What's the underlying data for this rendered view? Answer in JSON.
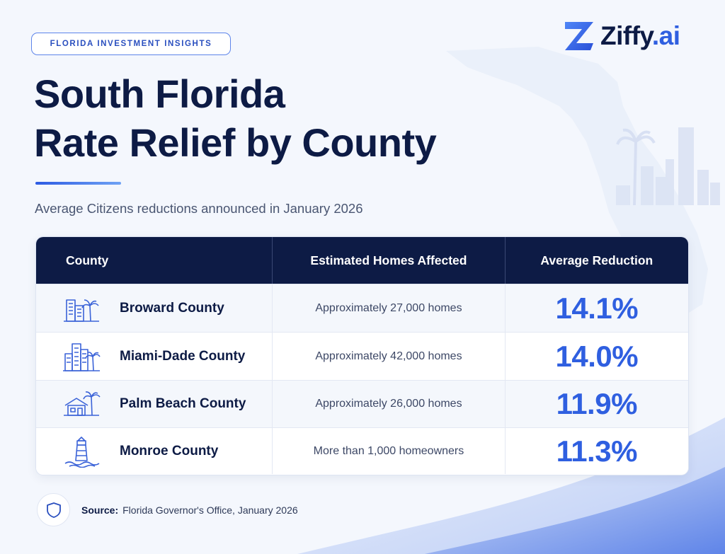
{
  "badge": "FLORIDA INVESTMENT INSIGHTS",
  "logo": {
    "name": "Ziffy",
    "suffix": ".ai"
  },
  "title": {
    "line1": "South Florida",
    "line2": "Rate Relief by County"
  },
  "subtitle": "Average Citizens reductions announced in January 2026",
  "table": {
    "headers": [
      "County",
      "Estimated Homes Affected",
      "Average Reduction"
    ],
    "rows": [
      {
        "icon": "city-buildings-palm-icon",
        "county": "Broward County",
        "homes": "Approximately 27,000 homes",
        "reduction": "14.1%"
      },
      {
        "icon": "skyscrapers-palm-icon",
        "county": "Miami-Dade County",
        "homes": "Approximately 42,000 homes",
        "reduction": "14.0%"
      },
      {
        "icon": "house-palm-icon",
        "county": "Palm Beach County",
        "homes": "Approximately 26,000 homes",
        "reduction": "11.9%"
      },
      {
        "icon": "lighthouse-icon",
        "county": "Monroe County",
        "homes": "More than 1,000 homeowners",
        "reduction": "11.3%"
      }
    ]
  },
  "source": {
    "label": "Source:",
    "text": "Florida Governor's Office, January 2026",
    "icon": "shield-icon"
  },
  "colors": {
    "navy": "#0d1b45",
    "accent": "#2f5fe0",
    "background": "#f4f7fd"
  }
}
